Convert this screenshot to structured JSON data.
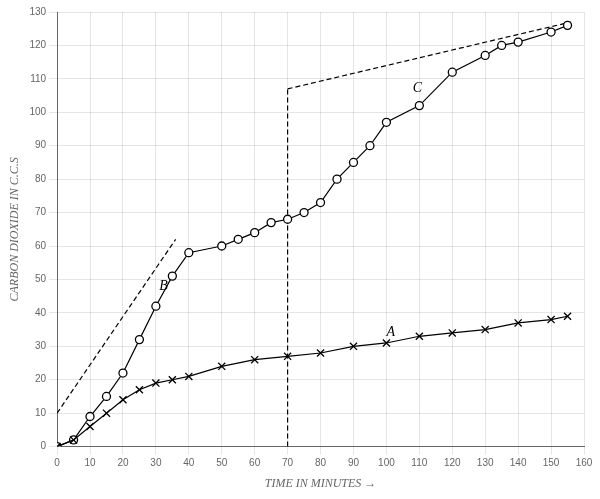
{
  "chart_data": {
    "type": "line",
    "xlabel": "TIME IN MINUTES →",
    "ylabel": "CARBON DIOXIDE IN C.C.S",
    "xlim": [
      0,
      160
    ],
    "ylim": [
      0,
      130
    ],
    "xticks": [
      0,
      10,
      20,
      30,
      40,
      50,
      60,
      70,
      80,
      90,
      100,
      110,
      120,
      130,
      140,
      150,
      160
    ],
    "yticks": [
      0,
      10,
      20,
      30,
      40,
      50,
      60,
      70,
      80,
      90,
      100,
      110,
      120,
      130
    ],
    "grid": true,
    "series": [
      {
        "x": [
          0,
          5,
          10,
          15,
          20,
          25,
          30,
          35,
          40,
          50,
          60,
          70,
          80,
          90,
          100,
          110,
          120,
          130,
          140,
          150,
          155
        ],
        "values": [
          0,
          2,
          6,
          10,
          14,
          17,
          19,
          20,
          21,
          24,
          26,
          27,
          28,
          30,
          31,
          33,
          34,
          35,
          37,
          38,
          39
        ],
        "marker": "x",
        "line_style": "solid",
        "color": "#000000"
      },
      {
        "x": [
          0,
          5,
          10,
          15,
          20,
          25,
          30,
          35,
          40,
          50,
          55,
          60,
          65,
          70,
          75,
          80,
          85,
          90,
          95,
          100,
          110,
          120,
          130,
          135,
          140,
          150,
          155
        ],
        "values": [
          0,
          2,
          9,
          15,
          22,
          32,
          42,
          51,
          58,
          60,
          62,
          64,
          67,
          68,
          70,
          73,
          80,
          85,
          90,
          97,
          102,
          112,
          117,
          120,
          121,
          124,
          126
        ],
        "marker": "o",
        "line_style": "solid",
        "color": "#000000"
      },
      {
        "x": [
          0,
          36
        ],
        "values": [
          10,
          62
        ],
        "marker": "none",
        "line_style": "dashed",
        "color": "#000000"
      },
      {
        "x": [
          70,
          156
        ],
        "values": [
          107,
          127
        ],
        "marker": "none",
        "line_style": "dashed",
        "color": "#000000"
      },
      {
        "x": [
          70,
          70
        ],
        "values": [
          0,
          107
        ],
        "marker": "none",
        "line_style": "dashed",
        "color": "#000000"
      }
    ],
    "annotations": [
      {
        "text": "A",
        "x": 100,
        "y": 32
      },
      {
        "text": "B",
        "x": 31,
        "y": 46
      },
      {
        "text": "C",
        "x": 108,
        "y": 105
      }
    ]
  }
}
